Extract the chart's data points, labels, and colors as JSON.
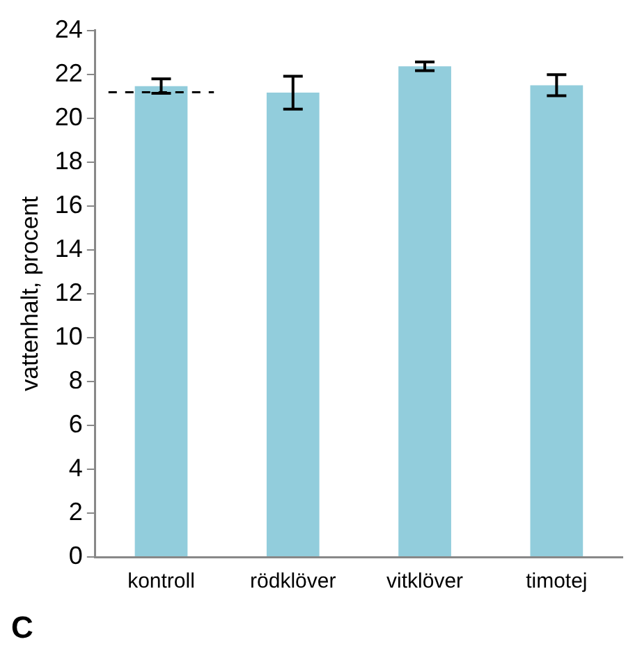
{
  "chart_data": {
    "type": "bar",
    "ylabel": "vattenhalt, procent",
    "categories": [
      "kontroll",
      "rödklöver",
      "vitklöver",
      "timotej"
    ],
    "values": [
      21.46,
      21.16,
      22.36,
      21.5
    ],
    "color": "#92cddc",
    "errors": [
      0.33,
      0.75,
      0.2,
      0.48
    ],
    "ylim": [
      0,
      24
    ],
    "yticks": [
      0,
      2,
      4,
      6,
      8,
      10,
      12,
      14,
      16,
      18,
      20,
      22,
      24
    ],
    "grid": false,
    "legend": false,
    "ref_lines": [
      {
        "axis": "y",
        "value": 21.18,
        "color": "#000000",
        "line_style": "dashed"
      }
    ],
    "annotations": [
      "C"
    ]
  }
}
